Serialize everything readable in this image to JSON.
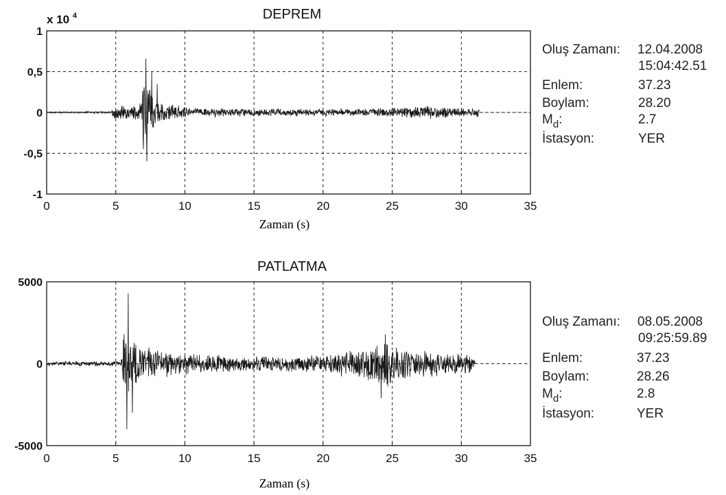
{
  "chart_data": [
    {
      "type": "line",
      "title": "DEPREM",
      "xlabel": "Zaman (s)",
      "ylabel": "",
      "y_multiplier_label": "x 10",
      "y_multiplier_exp": "4",
      "xlim": [
        0,
        35
      ],
      "ylim": [
        -1,
        1
      ],
      "x_ticks": [
        "0",
        "5",
        "10",
        "15",
        "20",
        "25",
        "30",
        "35"
      ],
      "y_ticks": [
        {
          "value": 1,
          "label": "1"
        },
        {
          "value": 0.5,
          "label": "0,5"
        },
        {
          "value": 0,
          "label": "0"
        },
        {
          "value": -0.5,
          "label": "-0,5"
        },
        {
          "value": -1,
          "label": "-1"
        }
      ],
      "grid": true,
      "signal": {
        "start": 0,
        "end": 31.3,
        "envelope": [
          [
            0,
            0.01
          ],
          [
            4.7,
            0.015
          ],
          [
            4.9,
            0.12
          ],
          [
            6.0,
            0.09
          ],
          [
            6.8,
            0.12
          ],
          [
            7.1,
            0.62
          ],
          [
            7.4,
            0.45
          ],
          [
            7.8,
            0.22
          ],
          [
            8.5,
            0.12
          ],
          [
            10,
            0.07
          ],
          [
            15,
            0.05
          ],
          [
            20,
            0.05
          ],
          [
            25,
            0.06
          ],
          [
            27.5,
            0.09
          ],
          [
            30,
            0.07
          ],
          [
            31.3,
            0.06
          ]
        ],
        "peaks": [
          [
            7.18,
            0.66
          ],
          [
            7.25,
            -0.6
          ],
          [
            7.0,
            -0.45
          ],
          [
            7.6,
            0.5
          ],
          [
            8.0,
            0.35
          ]
        ]
      },
      "info": {
        "olus_label": "Oluş Zamanı:",
        "olus_date": "12.04.2008",
        "olus_time": "15:04:42.51",
        "enlem_label": "Enlem:",
        "enlem_value": "37.23",
        "boylam_label": "Boylam:",
        "boylam_value": "28.20",
        "md_label": "M",
        "md_sub": "d",
        "md_colon": ":",
        "md_value": "2.7",
        "istasyon_label": "İstasyon:",
        "istasyon_value": "YER"
      }
    },
    {
      "type": "line",
      "title": "PATLATMA",
      "xlabel": "Zaman (s)",
      "ylabel": "",
      "xlim": [
        0,
        35
      ],
      "ylim": [
        -5000,
        5000
      ],
      "x_ticks": [
        "0",
        "5",
        "10",
        "15",
        "20",
        "25",
        "30",
        "35"
      ],
      "y_ticks": [
        {
          "value": 5000,
          "label": "5000"
        },
        {
          "value": 0,
          "label": "0"
        },
        {
          "value": -5000,
          "label": "-5000"
        }
      ],
      "grid": true,
      "signal": {
        "start": 0,
        "end": 31.0,
        "envelope": [
          [
            0,
            150
          ],
          [
            5.3,
            180
          ],
          [
            5.5,
            1900
          ],
          [
            6.0,
            2200
          ],
          [
            6.5,
            1300
          ],
          [
            8,
            950
          ],
          [
            10,
            700
          ],
          [
            15,
            500
          ],
          [
            20,
            600
          ],
          [
            23,
            1100
          ],
          [
            24.5,
            1500
          ],
          [
            27,
            900
          ],
          [
            30,
            700
          ],
          [
            31,
            600
          ]
        ],
        "peaks": [
          [
            5.9,
            4300
          ],
          [
            5.8,
            -4000
          ],
          [
            5.6,
            1800
          ],
          [
            6.2,
            -3000
          ],
          [
            24.2,
            -2100
          ],
          [
            24.5,
            1800
          ]
        ]
      },
      "info": {
        "olus_label": "Oluş Zamanı:",
        "olus_date": "08.05.2008",
        "olus_time": "09:25:59.89",
        "enlem_label": "Enlem:",
        "enlem_value": "37.23",
        "boylam_label": "Boylam:",
        "boylam_value": "28.26",
        "md_label": "M",
        "md_sub": "d",
        "md_colon": ":",
        "md_value": "2.8",
        "istasyon_label": "İstasyon:",
        "istasyon_value": "YER"
      }
    }
  ]
}
